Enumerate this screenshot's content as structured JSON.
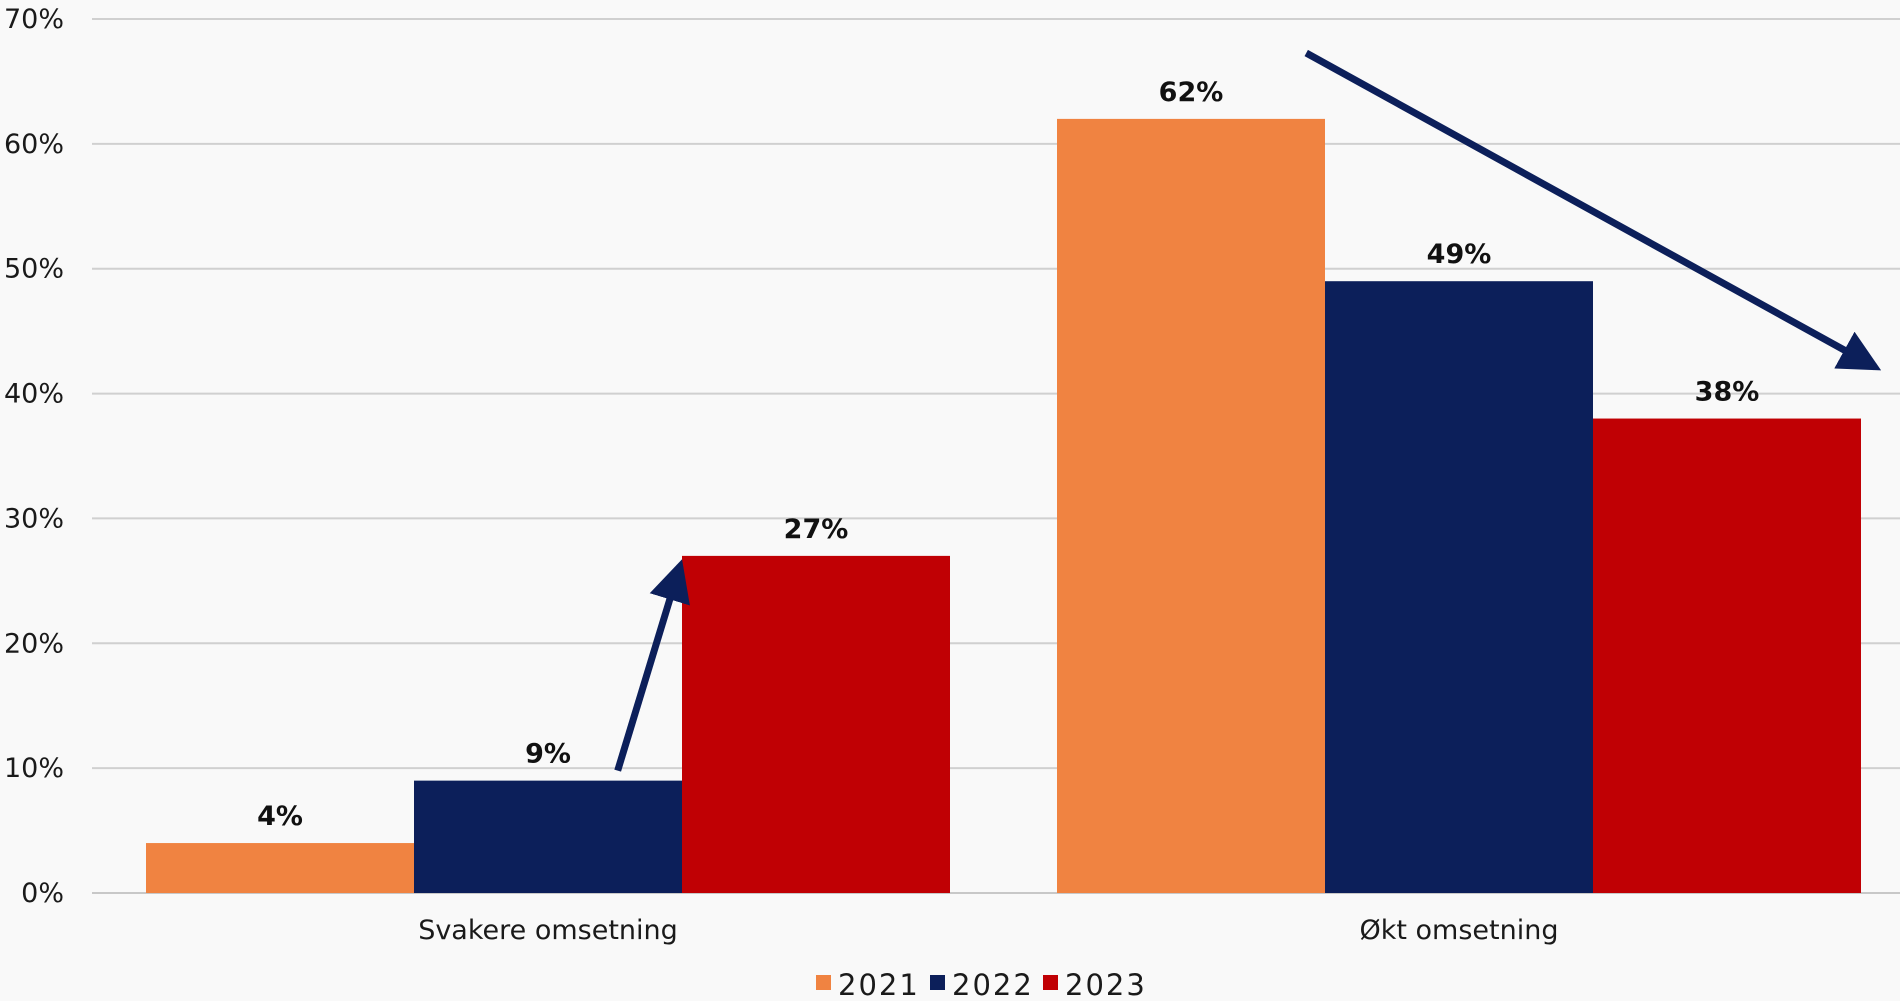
{
  "chart_data": {
    "type": "bar",
    "categories": [
      "Svakere omsetning",
      "Økt omsetning"
    ],
    "series": [
      {
        "name": "2021",
        "values": [
          4,
          62
        ],
        "labels": [
          "4%",
          "62%"
        ],
        "color": "#f08341"
      },
      {
        "name": "2022",
        "values": [
          9,
          49
        ],
        "labels": [
          "9%",
          "49%"
        ],
        "color": "#0c1f5a"
      },
      {
        "name": "2023",
        "values": [
          27,
          38
        ],
        "labels": [
          "27%",
          "38%"
        ],
        "color": "#c00004"
      }
    ],
    "ylim": [
      0,
      70
    ],
    "yticks": [
      0,
      10,
      20,
      30,
      40,
      50,
      60,
      70
    ],
    "ytick_labels": [
      "0%",
      "10%",
      "20%",
      "30%",
      "40%",
      "50%",
      "60%",
      "70%"
    ],
    "grid": true,
    "legend_position": "bottom",
    "annotations": [
      {
        "type": "arrow",
        "direction": "up",
        "from": {
          "category": "Svakere omsetning",
          "series": "2022"
        },
        "to": {
          "category": "Svakere omsetning",
          "series": "2023"
        },
        "color": "#0c1f5a"
      },
      {
        "type": "arrow",
        "direction": "down",
        "from": {
          "category": "Økt omsetning",
          "series": "2021"
        },
        "to": {
          "category": "Økt omsetning",
          "series": "2023"
        },
        "color": "#0c1f5a"
      }
    ]
  }
}
